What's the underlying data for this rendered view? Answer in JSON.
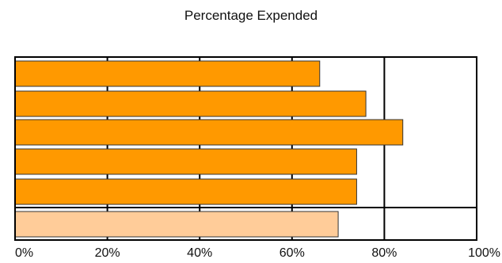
{
  "chart_data": {
    "type": "bar",
    "orientation": "horizontal",
    "title": "Percentage Expended",
    "xlabel": "",
    "ylabel": "",
    "xlim": [
      0,
      100
    ],
    "x_ticks": [
      "0%",
      "20%",
      "40%",
      "60%",
      "80%",
      "100%"
    ],
    "grid": true,
    "legend": "none",
    "values": [
      66,
      76,
      84,
      74,
      74,
      70
    ],
    "colors": [
      "#FF9900",
      "#FF9900",
      "#FF9900",
      "#FF9900",
      "#FF9900",
      "#FFCC99"
    ]
  }
}
